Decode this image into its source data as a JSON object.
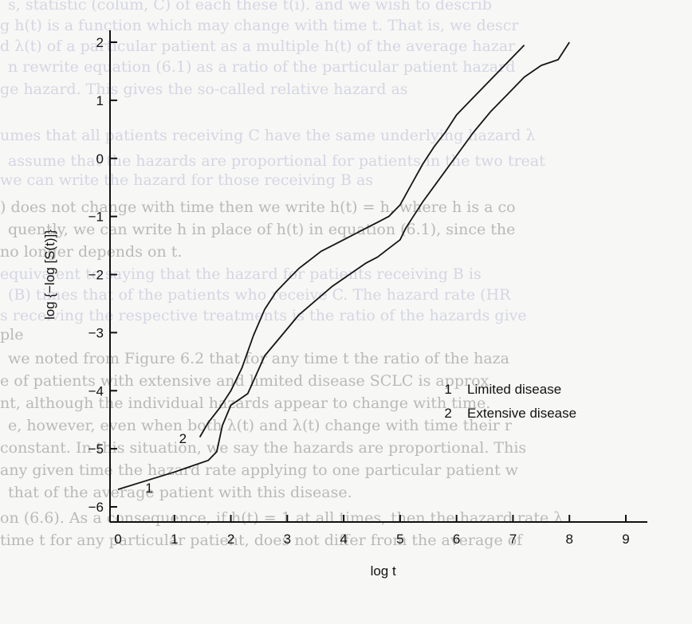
{
  "background_text": [
    "s, statistic (colum, C) of each these t(i). and we wish to describ",
    "g h(t) is a function which may change with time t. That is, we descr",
    "d λ(t) of a particular patient as a multiple h(t) of the average hazar",
    "n rewrite equation (6.1) as a ratio of the particular patient hazard",
    "ge hazard. This gives the so-called relative hazard as",
    "umes that all patients receiving C have the same underlying hazard λ",
    "assume that the hazards are proportional for patients in the two treat",
    "we can write the hazard for those receiving B as",
    ") does not change with time then we write h(t) = h, where h is a co",
    "quently, we can write h in place of h(t) in equation (6.1), since the",
    "no longer depends on t.",
    "equivalent to saying that the hazard for patients receiving B is",
    "(B) times that of the patients who receive C. The hazard rate (HR",
    "s receiving the respective treatments is the ratio of the hazards give",
    "ple",
    "we noted from Figure 6.2 that for any time t the ratio of the haza",
    "e of patients with extensive and limited disease SCLC is approx",
    "nt, although the individual hazards appear to change with time.",
    "e, however, even when both λ(t) and λ(t) change with time their r",
    "constant. In this situation, we say the hazards are proportional. This",
    "any given time the hazard rate applying to one particular patient w",
    "that of the average patient with this disease.",
    "on (6.6). As a consequence, if h(t) = 1 at all times, then the hazard rate λ",
    "time t for any particular patient, does not differ from the average of"
  ],
  "chart_data": {
    "type": "line",
    "xlabel": "log t",
    "ylabel": "log {−log [S(t)]}",
    "xlim": [
      0,
      9
    ],
    "ylim": [
      -6,
      2
    ],
    "xticks": [
      "0",
      "1",
      "2",
      "3",
      "4",
      "5",
      "6",
      "7",
      "8",
      "9"
    ],
    "yticks": [
      "−6",
      "−5",
      "−4",
      "−3",
      "−2",
      "−1",
      "0",
      "1",
      "2"
    ],
    "legend_placement": "lower-right",
    "series": [
      {
        "name": "Limited disease",
        "label": "1",
        "x": [
          0.0,
          0.5,
          1.0,
          1.3,
          1.6,
          1.75,
          1.85,
          2.0,
          2.3,
          2.6,
          2.9,
          3.2,
          3.5,
          3.8,
          4.1,
          4.4,
          4.6,
          4.8,
          5.0,
          5.1,
          5.2,
          5.4,
          5.7,
          6.0,
          6.3,
          6.6,
          6.9,
          7.2,
          7.5,
          7.8,
          8.0
        ],
        "y": [
          -5.7,
          -5.55,
          -5.4,
          -5.3,
          -5.2,
          -5.05,
          -4.6,
          -4.25,
          -4.05,
          -3.4,
          -3.05,
          -2.7,
          -2.45,
          -2.2,
          -2.0,
          -1.8,
          -1.7,
          -1.55,
          -1.4,
          -1.2,
          -1.05,
          -0.75,
          -0.35,
          0.05,
          0.45,
          0.8,
          1.1,
          1.4,
          1.6,
          1.7,
          2.0
        ]
      },
      {
        "name": "Extensive disease",
        "label": "2",
        "x": [
          1.45,
          1.6,
          1.8,
          2.0,
          2.2,
          2.4,
          2.6,
          2.8,
          3.0,
          3.2,
          3.4,
          3.6,
          3.8,
          4.0,
          4.2,
          4.4,
          4.6,
          4.8,
          5.0,
          5.2,
          5.4,
          5.6,
          5.8,
          6.0,
          6.2,
          6.4,
          6.6,
          6.8,
          7.0,
          7.2
        ],
        "y": [
          -4.8,
          -4.55,
          -4.3,
          -4.0,
          -3.6,
          -3.05,
          -2.6,
          -2.3,
          -2.1,
          -1.9,
          -1.75,
          -1.6,
          -1.5,
          -1.4,
          -1.3,
          -1.2,
          -1.1,
          -1.0,
          -0.8,
          -0.45,
          -0.1,
          0.2,
          0.45,
          0.75,
          0.95,
          1.15,
          1.35,
          1.55,
          1.75,
          1.95
        ]
      }
    ]
  }
}
